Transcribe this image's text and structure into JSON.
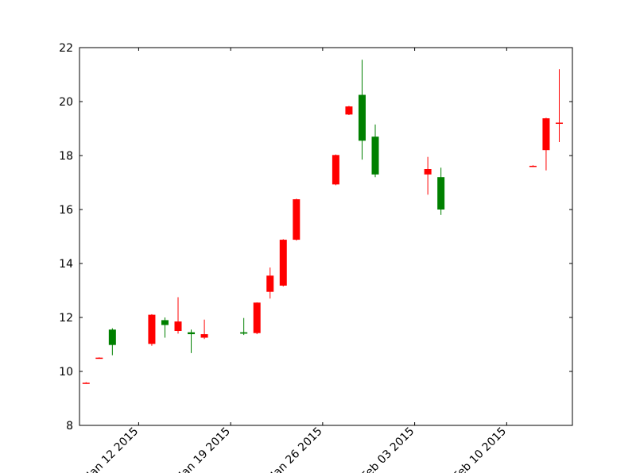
{
  "chart_data": {
    "type": "candlestick",
    "title": "",
    "xlabel": "",
    "ylabel": "",
    "ylim": [
      8,
      22
    ],
    "y_ticks": [
      "8",
      "10",
      "12",
      "14",
      "16",
      "18",
      "20",
      "22"
    ],
    "x_ticks": [
      "Jan 12 2015",
      "Jan 19 2015",
      "Jan 26 2015",
      "Feb 03 2015",
      "Feb 10 2015"
    ],
    "x_tick_days": [
      8,
      15,
      22,
      29,
      36
    ],
    "x_range_days": [
      3.5,
      41.0
    ],
    "grid": false,
    "legend": "none",
    "colors": {
      "up": "#008000",
      "down": "#ff0000",
      "axes": "#000000"
    },
    "candles": [
      {
        "day": 4,
        "open": 9.58,
        "high": 9.6,
        "low": 9.55,
        "close": 9.56
      },
      {
        "day": 5,
        "open": 10.51,
        "high": 10.52,
        "low": 10.48,
        "close": 10.49
      },
      {
        "day": 6,
        "open": 10.98,
        "high": 11.6,
        "low": 10.6,
        "close": 11.55
      },
      {
        "day": 9,
        "open": 12.1,
        "high": 12.12,
        "low": 10.95,
        "close": 11.02
      },
      {
        "day": 10,
        "open": 11.72,
        "high": 12.0,
        "low": 11.25,
        "close": 11.9
      },
      {
        "day": 11,
        "open": 11.85,
        "high": 12.75,
        "low": 11.4,
        "close": 11.5
      },
      {
        "day": 12,
        "open": 11.38,
        "high": 11.55,
        "low": 10.68,
        "close": 11.45
      },
      {
        "day": 13,
        "open": 11.38,
        "high": 11.92,
        "low": 11.2,
        "close": 11.25
      },
      {
        "day": 16,
        "open": 11.4,
        "high": 11.98,
        "low": 11.35,
        "close": 11.45
      },
      {
        "day": 17,
        "open": 12.55,
        "high": 12.56,
        "low": 11.38,
        "close": 11.42
      },
      {
        "day": 18,
        "open": 13.55,
        "high": 13.85,
        "low": 12.7,
        "close": 12.95
      },
      {
        "day": 19,
        "open": 14.88,
        "high": 14.9,
        "low": 13.15,
        "close": 13.18
      },
      {
        "day": 20,
        "open": 16.38,
        "high": 16.4,
        "low": 14.85,
        "close": 14.88
      },
      {
        "day": 23,
        "open": 18.02,
        "high": 18.04,
        "low": 16.9,
        "close": 16.93
      },
      {
        "day": 24,
        "open": 19.82,
        "high": 19.84,
        "low": 19.5,
        "close": 19.52
      },
      {
        "day": 25,
        "open": 18.55,
        "high": 21.55,
        "low": 17.85,
        "close": 20.25
      },
      {
        "day": 26,
        "open": 17.3,
        "high": 19.15,
        "low": 17.2,
        "close": 18.7
      },
      {
        "day": 30,
        "open": 17.5,
        "high": 17.95,
        "low": 16.55,
        "close": 17.3
      },
      {
        "day": 31,
        "open": 16.0,
        "high": 17.55,
        "low": 15.8,
        "close": 17.2
      },
      {
        "day": 38,
        "open": 17.62,
        "high": 17.64,
        "low": 17.58,
        "close": 17.6
      },
      {
        "day": 39,
        "open": 19.38,
        "high": 19.4,
        "low": 17.45,
        "close": 18.2
      },
      {
        "day": 40,
        "open": 19.22,
        "high": 21.2,
        "low": 18.5,
        "close": 19.2
      }
    ]
  }
}
